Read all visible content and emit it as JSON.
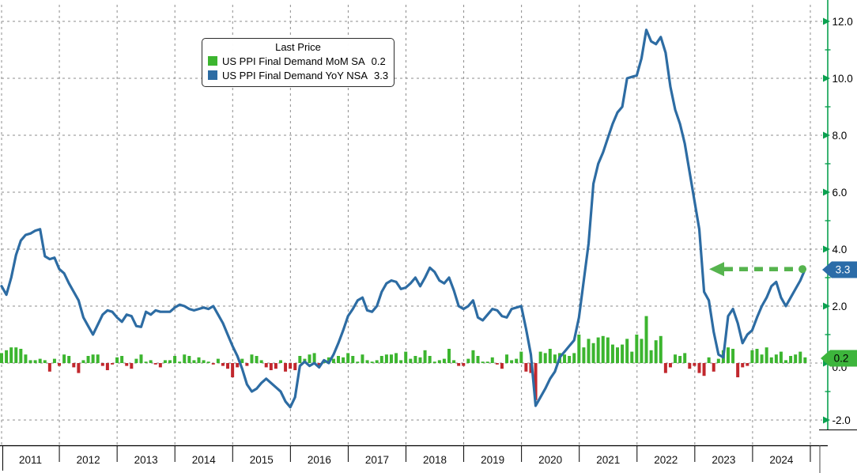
{
  "legend": {
    "title": "Last Price",
    "series": [
      {
        "label": "US PPI Final Demand MoM SA",
        "value": "0.2",
        "color": "#3cb52f"
      },
      {
        "label": "US PPI Final Demand YoY NSA",
        "value": "3.3",
        "color": "#2d6ca3"
      }
    ]
  },
  "axis": {
    "color": "#0aa04f",
    "y_tick_labels": [
      "12.0",
      "10.0",
      "8.0",
      "6.0",
      "4.0",
      "2.0",
      "0.0",
      "-2.0"
    ],
    "badges": [
      {
        "text": "3.3",
        "color": "#2b6ca8",
        "text_color": "#ffffff"
      },
      {
        "text": "0.2",
        "color": "#3db53c",
        "text_color": "#000000"
      }
    ]
  },
  "chart_data": {
    "type": "mixed-bar-line",
    "title": "",
    "x_start_month": "2011-01",
    "x_end_month": "2024-12",
    "categories_years": [
      "2011",
      "2012",
      "2013",
      "2014",
      "2015",
      "2016",
      "2017",
      "2018",
      "2019",
      "2020",
      "2021",
      "2022",
      "2023",
      "2024"
    ],
    "yticks": [
      12,
      10,
      8,
      6,
      4,
      2,
      0,
      -2
    ],
    "ylim": [
      -2.95,
      12.7
    ],
    "grid": "dashed",
    "legend_position": "top-left-inside",
    "series": [
      {
        "name": "US PPI Final Demand MoM SA",
        "type": "bar",
        "last_price": 0.2,
        "color_positive": "#3cb52f",
        "color_negative": "#c1272d",
        "values": [
          0.35,
          0.45,
          0.55,
          0.55,
          0.5,
          0.3,
          0.1,
          0.1,
          0.15,
          0.1,
          -0.3,
          0.15,
          -0.1,
          0.3,
          0.25,
          -0.15,
          -0.35,
          0.1,
          0.25,
          0.3,
          0.3,
          -0.1,
          -0.25,
          -0.05,
          0.2,
          0.25,
          -0.1,
          -0.2,
          0.15,
          0.3,
          0.05,
          0.1,
          -0.05,
          -0.15,
          0.1,
          0.1,
          0.25,
          0.05,
          0.3,
          0.25,
          0.1,
          0.2,
          0.1,
          0.05,
          -0.05,
          0.15,
          -0.1,
          -0.2,
          -0.5,
          -0.15,
          0.15,
          -0.1,
          0.3,
          0.25,
          0.1,
          -0.15,
          -0.25,
          -0.2,
          0.1,
          -0.3,
          -0.2,
          -0.25,
          0.25,
          0.15,
          0.3,
          0.35,
          -0.1,
          0.1,
          0.2,
          0.15,
          0.25,
          0.2,
          0.35,
          0.25,
          0.05,
          0.3,
          0.1,
          0.05,
          0.1,
          0.25,
          0.3,
          0.3,
          0.35,
          0.1,
          0.4,
          0.15,
          0.25,
          0.2,
          0.45,
          0.25,
          0.05,
          0.1,
          0.15,
          0.5,
          0.1,
          -0.1,
          -0.1,
          0.15,
          0.45,
          0.25,
          0.05,
          0.05,
          0.2,
          -0.05,
          -0.2,
          0.3,
          0.1,
          0.15,
          0.4,
          -0.3,
          -0.35,
          -1.3,
          0.4,
          0.35,
          0.5,
          0.3,
          0.35,
          0.3,
          0.25,
          0.35,
          1.0,
          0.55,
          0.85,
          0.7,
          0.9,
          0.95,
          0.9,
          0.65,
          0.55,
          0.65,
          0.85,
          0.4,
          1.0,
          0.85,
          1.65,
          0.45,
          0.8,
          0.95,
          -0.35,
          -0.15,
          0.3,
          0.25,
          0.35,
          -0.2,
          -0.1,
          -0.35,
          -0.45,
          0.2,
          -0.3,
          0.15,
          0.45,
          0.55,
          0.5,
          -0.5,
          -0.15,
          -0.1,
          0.45,
          0.5,
          0.3,
          0.55,
          0.2,
          0.3,
          0.4,
          0.1,
          0.25,
          0.3,
          0.4,
          0.2
        ]
      },
      {
        "name": "US PPI Final Demand YoY NSA",
        "type": "line",
        "last_price": 3.3,
        "color": "#2d6ca3",
        "values": [
          2.7,
          2.4,
          3.0,
          3.8,
          4.3,
          4.5,
          4.55,
          4.65,
          4.7,
          3.75,
          3.65,
          3.7,
          3.3,
          3.15,
          2.8,
          2.5,
          2.2,
          1.6,
          1.3,
          1.0,
          1.35,
          1.7,
          1.85,
          1.8,
          1.6,
          1.45,
          1.7,
          1.65,
          1.3,
          1.27,
          1.8,
          1.7,
          1.85,
          1.8,
          1.8,
          1.8,
          1.95,
          2.05,
          2.0,
          1.9,
          1.85,
          1.9,
          1.95,
          1.9,
          2.0,
          1.7,
          1.4,
          1.0,
          0.6,
          0.25,
          -0.2,
          -0.75,
          -1.0,
          -0.9,
          -0.7,
          -0.55,
          -0.7,
          -0.85,
          -1.0,
          -1.35,
          -1.55,
          -1.2,
          -0.1,
          0.05,
          -0.1,
          0.0,
          -0.15,
          0.1,
          0.0,
          0.3,
          0.7,
          1.15,
          1.65,
          1.9,
          2.2,
          2.3,
          1.85,
          1.8,
          2.0,
          2.5,
          2.8,
          2.9,
          2.85,
          2.6,
          2.65,
          2.8,
          3.0,
          2.7,
          3.0,
          3.35,
          3.2,
          2.9,
          2.8,
          3.0,
          2.55,
          2.0,
          1.9,
          2.0,
          2.2,
          1.6,
          1.5,
          1.7,
          1.9,
          1.85,
          1.65,
          1.6,
          1.9,
          1.95,
          2.0,
          1.2,
          0.3,
          -1.5,
          -1.2,
          -0.9,
          -0.55,
          -0.3,
          0.2,
          0.4,
          0.6,
          0.8,
          1.6,
          2.9,
          4.2,
          6.3,
          7.0,
          7.4,
          7.9,
          8.4,
          8.8,
          9.0,
          10.0,
          10.05,
          10.1,
          10.7,
          11.7,
          11.3,
          11.2,
          11.45,
          10.9,
          9.7,
          8.9,
          8.4,
          7.7,
          6.7,
          5.7,
          4.7,
          2.5,
          2.2,
          1.1,
          0.3,
          0.2,
          1.65,
          1.9,
          1.4,
          0.7,
          1.0,
          1.15,
          1.6,
          2.0,
          2.3,
          2.7,
          2.85,
          2.3,
          2.0,
          2.3,
          2.6,
          2.9,
          3.3
        ]
      }
    ],
    "annotation": {
      "type": "dashed-arrow-left",
      "at_value": 3.3,
      "color": "#56b44e"
    }
  }
}
